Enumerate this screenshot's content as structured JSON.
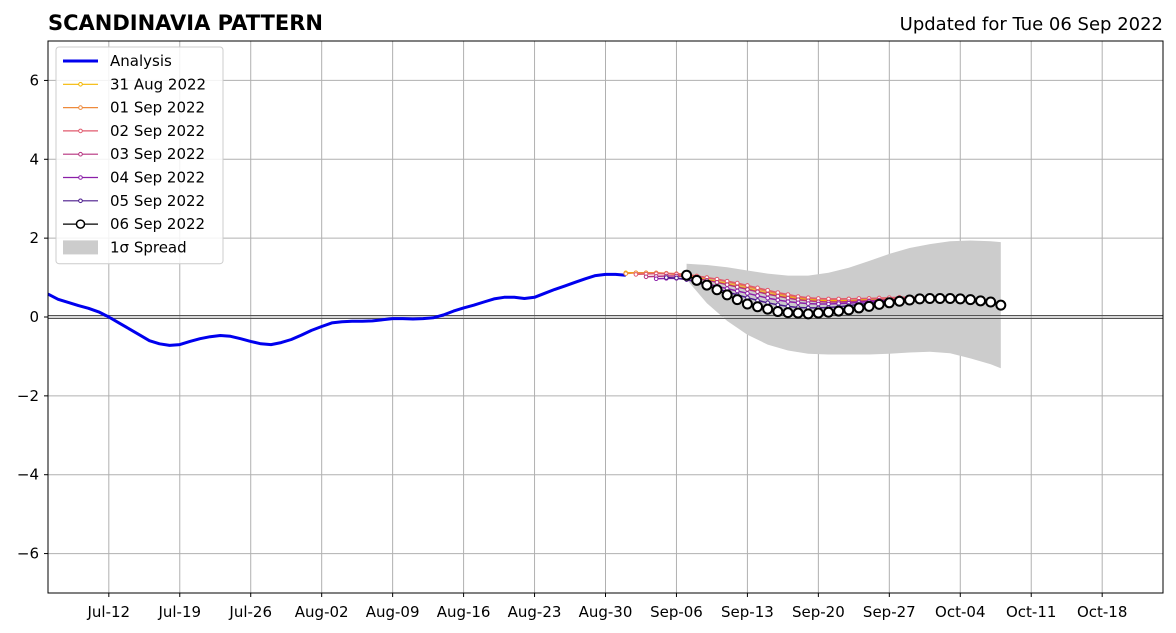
{
  "header": {
    "title": "SCANDINAVIA PATTERN",
    "updated": "Updated for Tue 06 Sep 2022"
  },
  "chart_data": {
    "type": "line",
    "title": "SCANDINAVIA PATTERN",
    "xlabel": "",
    "ylabel": "",
    "ylim": [
      -7,
      7
    ],
    "xlim": [
      "2022-07-06",
      "2022-10-24"
    ],
    "grid": true,
    "legend_position": "top-left",
    "x_tick_labels": [
      "Jul-12",
      "Jul-19",
      "Jul-26",
      "Aug-02",
      "Aug-09",
      "Aug-16",
      "Aug-23",
      "Aug-30",
      "Sep-06",
      "Sep-13",
      "Sep-20",
      "Sep-27",
      "Oct-04",
      "Oct-11",
      "Oct-18"
    ],
    "x_tick_dates": [
      "2022-07-12",
      "2022-07-19",
      "2022-07-26",
      "2022-08-02",
      "2022-08-09",
      "2022-08-16",
      "2022-08-23",
      "2022-08-30",
      "2022-09-06",
      "2022-09-13",
      "2022-09-20",
      "2022-09-27",
      "2022-10-04",
      "2022-10-11",
      "2022-10-18"
    ],
    "y_ticks": [
      -6,
      -4,
      -2,
      0,
      2,
      4,
      6
    ],
    "y_tick_labels": [
      "−6",
      "−4",
      "−2",
      "0",
      "2",
      "4",
      "6"
    ],
    "series": [
      {
        "name": "Analysis",
        "color": "#0000ee",
        "style": "analysis",
        "x": [
          "2022-07-06",
          "2022-07-07",
          "2022-07-08",
          "2022-07-09",
          "2022-07-10",
          "2022-07-11",
          "2022-07-12",
          "2022-07-13",
          "2022-07-14",
          "2022-07-15",
          "2022-07-16",
          "2022-07-17",
          "2022-07-18",
          "2022-07-19",
          "2022-07-20",
          "2022-07-21",
          "2022-07-22",
          "2022-07-23",
          "2022-07-24",
          "2022-07-25",
          "2022-07-26",
          "2022-07-27",
          "2022-07-28",
          "2022-07-29",
          "2022-07-30",
          "2022-07-31",
          "2022-08-01",
          "2022-08-02",
          "2022-08-03",
          "2022-08-04",
          "2022-08-05",
          "2022-08-06",
          "2022-08-07",
          "2022-08-08",
          "2022-08-09",
          "2022-08-10",
          "2022-08-11",
          "2022-08-12",
          "2022-08-13",
          "2022-08-14",
          "2022-08-15",
          "2022-08-16",
          "2022-08-17",
          "2022-08-18",
          "2022-08-19",
          "2022-08-20",
          "2022-08-21",
          "2022-08-22",
          "2022-08-23",
          "2022-08-24",
          "2022-08-25",
          "2022-08-26",
          "2022-08-27",
          "2022-08-28",
          "2022-08-29",
          "2022-08-30",
          "2022-08-31",
          "2022-09-01"
        ],
        "values": [
          0.58,
          0.45,
          0.37,
          0.29,
          0.22,
          0.13,
          0.0,
          -0.15,
          -0.3,
          -0.45,
          -0.6,
          -0.68,
          -0.72,
          -0.7,
          -0.62,
          -0.55,
          -0.5,
          -0.47,
          -0.49,
          -0.55,
          -0.62,
          -0.68,
          -0.7,
          -0.65,
          -0.57,
          -0.46,
          -0.34,
          -0.24,
          -0.15,
          -0.12,
          -0.11,
          -0.11,
          -0.1,
          -0.07,
          -0.04,
          -0.04,
          -0.05,
          -0.04,
          -0.02,
          0.05,
          0.15,
          0.23,
          0.3,
          0.38,
          0.46,
          0.5,
          0.5,
          0.47,
          0.5,
          0.6,
          0.7,
          0.79,
          0.88,
          0.97,
          1.05,
          1.08,
          1.08,
          1.06
        ]
      },
      {
        "name": "31 Aug 2022",
        "color": "#f5b700",
        "style": "forecast",
        "x": [
          "2022-09-01",
          "2022-09-02",
          "2022-09-03",
          "2022-09-04",
          "2022-09-05",
          "2022-09-06",
          "2022-09-07",
          "2022-09-08",
          "2022-09-09",
          "2022-09-10",
          "2022-09-11",
          "2022-09-12",
          "2022-09-13",
          "2022-09-14",
          "2022-09-15",
          "2022-09-16",
          "2022-09-17",
          "2022-09-18",
          "2022-09-19",
          "2022-09-20",
          "2022-09-21",
          "2022-09-22",
          "2022-09-23",
          "2022-09-24",
          "2022-09-25",
          "2022-09-26",
          "2022-09-27",
          "2022-09-28",
          "2022-09-29",
          "2022-09-30",
          "2022-10-01"
        ],
        "values": [
          1.12,
          1.12,
          1.12,
          1.11,
          1.1,
          1.08,
          1.05,
          1.0,
          0.95,
          0.9,
          0.84,
          0.78,
          0.72,
          0.66,
          0.6,
          0.55,
          0.5,
          0.46,
          0.44,
          0.42,
          0.41,
          0.41,
          0.41,
          0.42,
          0.43,
          0.44,
          0.45,
          0.46,
          0.47,
          0.47,
          0.47
        ]
      },
      {
        "name": "01 Sep 2022",
        "color": "#ee8a3c",
        "style": "forecast",
        "x": [
          "2022-09-01",
          "2022-09-02",
          "2022-09-03",
          "2022-09-04",
          "2022-09-05",
          "2022-09-06",
          "2022-09-07",
          "2022-09-08",
          "2022-09-09",
          "2022-09-10",
          "2022-09-11",
          "2022-09-12",
          "2022-09-13",
          "2022-09-14",
          "2022-09-15",
          "2022-09-16",
          "2022-09-17",
          "2022-09-18",
          "2022-09-19",
          "2022-09-20",
          "2022-09-21",
          "2022-09-22",
          "2022-09-23",
          "2022-09-24",
          "2022-09-25",
          "2022-09-26",
          "2022-09-27",
          "2022-09-28",
          "2022-09-29",
          "2022-09-30",
          "2022-10-01",
          "2022-10-02"
        ],
        "values": [
          1.1,
          1.12,
          1.12,
          1.12,
          1.11,
          1.1,
          1.08,
          1.04,
          1.0,
          0.95,
          0.89,
          0.83,
          0.77,
          0.71,
          0.65,
          0.59,
          0.54,
          0.5,
          0.47,
          0.46,
          0.45,
          0.45,
          0.46,
          0.46,
          0.47,
          0.48,
          0.48,
          0.49,
          0.49,
          0.49,
          0.48,
          0.48
        ]
      },
      {
        "name": "02 Sep 2022",
        "color": "#e05a6e",
        "style": "forecast",
        "x": [
          "2022-09-02",
          "2022-09-03",
          "2022-09-04",
          "2022-09-05",
          "2022-09-06",
          "2022-09-07",
          "2022-09-08",
          "2022-09-09",
          "2022-09-10",
          "2022-09-11",
          "2022-09-12",
          "2022-09-13",
          "2022-09-14",
          "2022-09-15",
          "2022-09-16",
          "2022-09-17",
          "2022-09-18",
          "2022-09-19",
          "2022-09-20",
          "2022-09-21",
          "2022-09-22",
          "2022-09-23",
          "2022-09-24",
          "2022-09-25",
          "2022-09-26",
          "2022-09-27",
          "2022-09-28",
          "2022-09-29",
          "2022-09-30",
          "2022-10-01",
          "2022-10-02",
          "2022-10-03"
        ],
        "values": [
          1.08,
          1.09,
          1.1,
          1.1,
          1.09,
          1.07,
          1.04,
          1.0,
          0.96,
          0.91,
          0.86,
          0.8,
          0.74,
          0.68,
          0.62,
          0.57,
          0.52,
          0.49,
          0.47,
          0.46,
          0.46,
          0.46,
          0.47,
          0.47,
          0.48,
          0.49,
          0.5,
          0.5,
          0.5,
          0.5,
          0.49,
          0.48
        ]
      },
      {
        "name": "03 Sep 2022",
        "color": "#b5307e",
        "style": "forecast",
        "x": [
          "2022-09-03",
          "2022-09-04",
          "2022-09-05",
          "2022-09-06",
          "2022-09-07",
          "2022-09-08",
          "2022-09-09",
          "2022-09-10",
          "2022-09-11",
          "2022-09-12",
          "2022-09-13",
          "2022-09-14",
          "2022-09-15",
          "2022-09-16",
          "2022-09-17",
          "2022-09-18",
          "2022-09-19",
          "2022-09-20",
          "2022-09-21",
          "2022-09-22",
          "2022-09-23",
          "2022-09-24",
          "2022-09-25",
          "2022-09-26",
          "2022-09-27",
          "2022-09-28",
          "2022-09-29",
          "2022-09-30",
          "2022-10-01",
          "2022-10-02",
          "2022-10-03",
          "2022-10-04"
        ],
        "values": [
          1.02,
          1.03,
          1.04,
          1.04,
          1.02,
          0.98,
          0.93,
          0.88,
          0.82,
          0.76,
          0.7,
          0.64,
          0.58,
          0.53,
          0.48,
          0.44,
          0.41,
          0.39,
          0.38,
          0.38,
          0.39,
          0.4,
          0.41,
          0.43,
          0.44,
          0.46,
          0.47,
          0.48,
          0.48,
          0.48,
          0.47,
          0.46
        ]
      },
      {
        "name": "04 Sep 2022",
        "color": "#8b1fa8",
        "style": "forecast",
        "x": [
          "2022-09-04",
          "2022-09-05",
          "2022-09-06",
          "2022-09-07",
          "2022-09-08",
          "2022-09-09",
          "2022-09-10",
          "2022-09-11",
          "2022-09-12",
          "2022-09-13",
          "2022-09-14",
          "2022-09-15",
          "2022-09-16",
          "2022-09-17",
          "2022-09-18",
          "2022-09-19",
          "2022-09-20",
          "2022-09-21",
          "2022-09-22",
          "2022-09-23",
          "2022-09-24",
          "2022-09-25",
          "2022-09-26",
          "2022-09-27",
          "2022-09-28",
          "2022-09-29",
          "2022-09-30",
          "2022-10-01",
          "2022-10-02",
          "2022-10-03",
          "2022-10-04",
          "2022-10-05"
        ],
        "values": [
          0.97,
          0.98,
          0.98,
          0.95,
          0.9,
          0.84,
          0.78,
          0.72,
          0.66,
          0.6,
          0.54,
          0.48,
          0.43,
          0.39,
          0.36,
          0.34,
          0.33,
          0.33,
          0.34,
          0.35,
          0.37,
          0.39,
          0.41,
          0.43,
          0.44,
          0.45,
          0.46,
          0.46,
          0.46,
          0.45,
          0.44,
          0.43
        ]
      },
      {
        "name": "05 Sep 2022",
        "color": "#4a1a8c",
        "style": "forecast",
        "x": [
          "2022-09-05",
          "2022-09-06",
          "2022-09-07",
          "2022-09-08",
          "2022-09-09",
          "2022-09-10",
          "2022-09-11",
          "2022-09-12",
          "2022-09-13",
          "2022-09-14",
          "2022-09-15",
          "2022-09-16",
          "2022-09-17",
          "2022-09-18",
          "2022-09-19",
          "2022-09-20",
          "2022-09-21",
          "2022-09-22",
          "2022-09-23",
          "2022-09-24",
          "2022-09-25",
          "2022-09-26",
          "2022-09-27",
          "2022-09-28",
          "2022-09-29",
          "2022-09-30",
          "2022-10-01",
          "2022-10-02",
          "2022-10-03",
          "2022-10-04",
          "2022-10-05",
          "2022-10-06"
        ],
        "values": [
          1.0,
          0.99,
          0.95,
          0.88,
          0.8,
          0.72,
          0.64,
          0.56,
          0.49,
          0.42,
          0.36,
          0.31,
          0.27,
          0.24,
          0.23,
          0.23,
          0.24,
          0.26,
          0.29,
          0.32,
          0.35,
          0.38,
          0.41,
          0.43,
          0.44,
          0.45,
          0.45,
          0.45,
          0.44,
          0.43,
          0.42,
          0.4
        ]
      },
      {
        "name": "06 Sep 2022",
        "color": "#000000",
        "style": "current",
        "x": [
          "2022-09-07",
          "2022-09-08",
          "2022-09-09",
          "2022-09-10",
          "2022-09-11",
          "2022-09-12",
          "2022-09-13",
          "2022-09-14",
          "2022-09-15",
          "2022-09-16",
          "2022-09-17",
          "2022-09-18",
          "2022-09-19",
          "2022-09-20",
          "2022-09-21",
          "2022-09-22",
          "2022-09-23",
          "2022-09-24",
          "2022-09-25",
          "2022-09-26",
          "2022-09-27",
          "2022-09-28",
          "2022-09-29",
          "2022-09-30",
          "2022-10-01",
          "2022-10-02",
          "2022-10-03",
          "2022-10-04",
          "2022-10-05",
          "2022-10-06",
          "2022-10-07",
          "2022-10-08"
        ],
        "values": [
          1.06,
          0.93,
          0.81,
          0.69,
          0.56,
          0.44,
          0.33,
          0.26,
          0.2,
          0.14,
          0.11,
          0.1,
          0.08,
          0.1,
          0.12,
          0.15,
          0.18,
          0.23,
          0.27,
          0.32,
          0.36,
          0.4,
          0.43,
          0.46,
          0.47,
          0.47,
          0.47,
          0.46,
          0.44,
          0.41,
          0.38,
          0.3
        ]
      }
    ],
    "spread": {
      "name": "1σ Spread",
      "color": "#cccccc",
      "x": [
        "2022-09-07",
        "2022-09-09",
        "2022-09-11",
        "2022-09-13",
        "2022-09-15",
        "2022-09-17",
        "2022-09-19",
        "2022-09-21",
        "2022-09-23",
        "2022-09-25",
        "2022-09-27",
        "2022-09-29",
        "2022-10-01",
        "2022-10-03",
        "2022-10-05",
        "2022-10-07",
        "2022-10-08"
      ],
      "upper": [
        1.35,
        1.32,
        1.26,
        1.18,
        1.1,
        1.05,
        1.05,
        1.12,
        1.25,
        1.42,
        1.6,
        1.75,
        1.85,
        1.92,
        1.94,
        1.92,
        1.9
      ],
      "lower": [
        0.95,
        0.35,
        -0.1,
        -0.45,
        -0.7,
        -0.85,
        -0.93,
        -0.95,
        -0.95,
        -0.95,
        -0.93,
        -0.9,
        -0.88,
        -0.92,
        -1.05,
        -1.2,
        -1.3
      ]
    }
  }
}
